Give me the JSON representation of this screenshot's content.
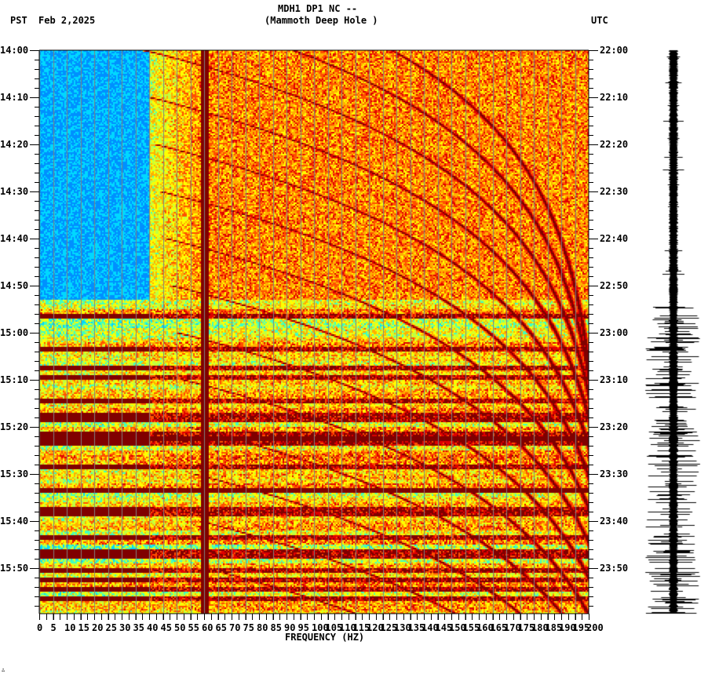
{
  "header": {
    "title_line1": "MDH1 DP1 NC --",
    "title_line2": "(Mammoth Deep Hole )",
    "left_timezone": "PST",
    "date": "Feb 2,2025",
    "right_timezone": "UTC"
  },
  "footer": {
    "xaxis_title": "FREQUENCY (HZ)",
    "corner_mark": "∴"
  },
  "colors": {
    "background": "#ffffff",
    "axis": "#000000",
    "gridline": "#808080",
    "colormap": [
      "#0050ff",
      "#0090ff",
      "#00d8ff",
      "#40ffc0",
      "#c0ff40",
      "#ffff00",
      "#ffb000",
      "#ff5000",
      "#e00000",
      "#800000"
    ]
  },
  "chart_data": {
    "type": "heatmap",
    "title": "MDH1 DP1 NC -- (Mammoth Deep Hole )",
    "subtitle": "Feb 2,2025",
    "xlabel": "FREQUENCY (HZ)",
    "ylabel_left": "PST",
    "ylabel_right": "UTC",
    "xlim": [
      0,
      200
    ],
    "x_ticks": [
      0,
      5,
      10,
      15,
      20,
      25,
      30,
      35,
      40,
      45,
      50,
      55,
      60,
      65,
      70,
      75,
      80,
      85,
      90,
      95,
      100,
      105,
      110,
      115,
      120,
      125,
      130,
      135,
      140,
      145,
      150,
      155,
      160,
      165,
      170,
      175,
      180,
      185,
      190,
      195,
      200
    ],
    "x_tick_labels": [
      "0",
      "5",
      "10",
      "15",
      "20",
      "25",
      "30",
      "35",
      "40",
      "45",
      "50",
      "55",
      "60",
      "65",
      "70",
      "75",
      "80",
      "85",
      "90",
      "95",
      "100",
      "105",
      "110",
      "115",
      "120",
      "125",
      "130",
      "135",
      "140",
      "145",
      "150",
      "155",
      "160",
      "165",
      "170",
      "175",
      "180",
      "185",
      "190",
      "195",
      "200"
    ],
    "y_ticks_left": [
      "14:00",
      "14:10",
      "14:20",
      "14:30",
      "14:40",
      "14:50",
      "15:00",
      "15:10",
      "15:20",
      "15:30",
      "15:40",
      "15:50"
    ],
    "y_ticks_right": [
      "22:00",
      "22:10",
      "22:20",
      "22:30",
      "22:40",
      "22:50",
      "23:00",
      "23:10",
      "23:20",
      "23:30",
      "23:40",
      "23:50"
    ],
    "time_range_minutes": [
      0,
      120
    ],
    "minor_tick_minutes": 2,
    "grid": {
      "vertical_every_hz": 5,
      "color": "#808080"
    },
    "features": {
      "line_60hz": {
        "freq": 60,
        "level": 1.0
      },
      "gliding_tones": {
        "description": "curved harmonic chirps rising in frequency over time",
        "count": 14
      },
      "quiet_low_freq_region": {
        "freq_max": 40,
        "until_minute": 53
      },
      "strong_broadband_bands_minutes": [
        82.5,
        93
      ],
      "noisy_after_minute": 53
    },
    "seismogram": {
      "description": "trace amplitude grows after ~14:53 PST",
      "quiet_until_minute": 54
    }
  }
}
